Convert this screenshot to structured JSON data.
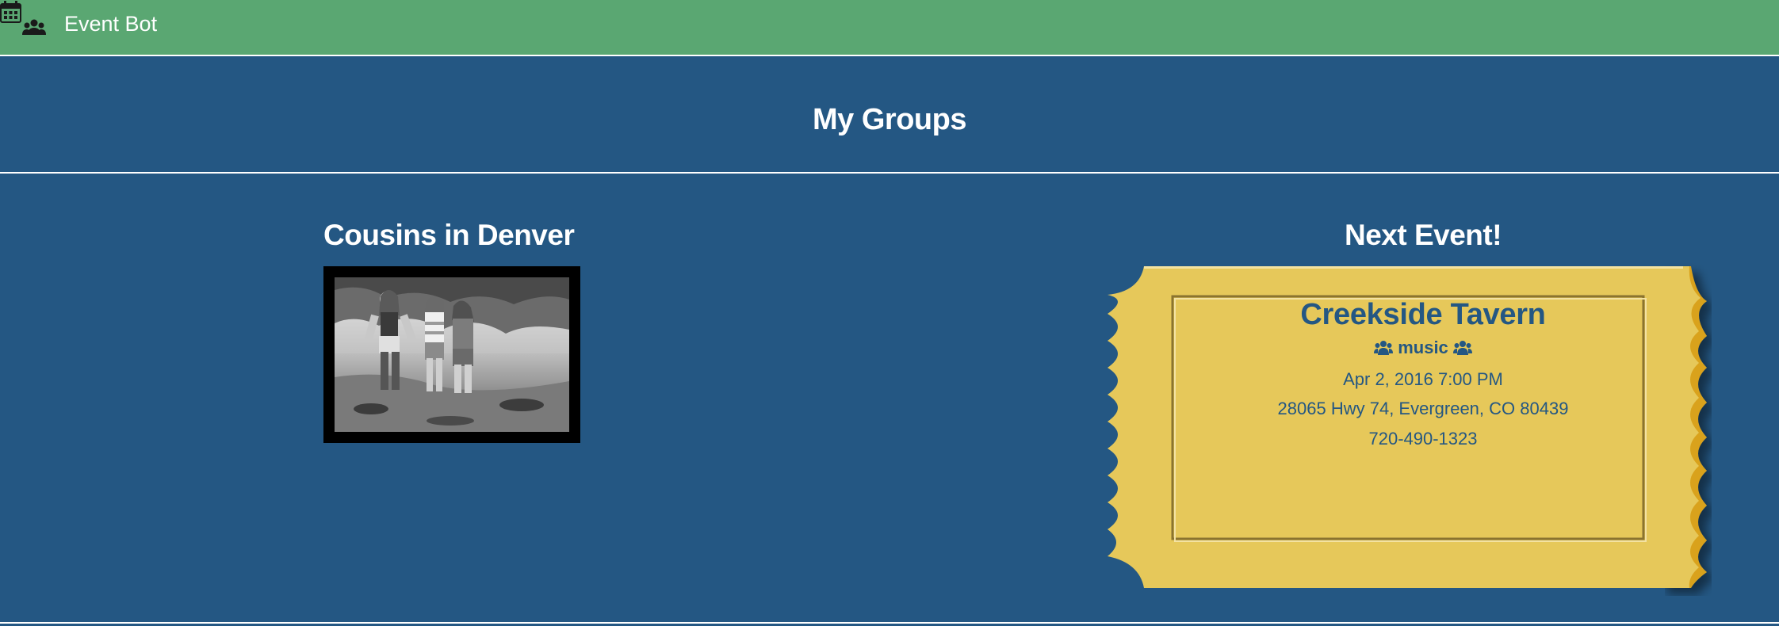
{
  "navbar": {
    "brand": "Event Bot",
    "logo_icon": "calendar-group-icon"
  },
  "header": {
    "title": "My Groups"
  },
  "group": {
    "name": "Cousins in Denver",
    "photo_icon": "group-photo"
  },
  "next_event": {
    "heading": "Next Event!",
    "venue": "Creekside Tavern",
    "category": "music",
    "category_icon": "users-icon",
    "date": "Apr 2, 2016 7:00 PM",
    "address": "28065 Hwy 74, Evergreen, CO 80439",
    "phone": "720-490-1323"
  },
  "colors": {
    "navbar": "#5aa772",
    "page_background": "#245783",
    "ticket": "#e6c85a",
    "ticket_edge": "#d9a21f",
    "text_on_ticket": "#245783"
  }
}
